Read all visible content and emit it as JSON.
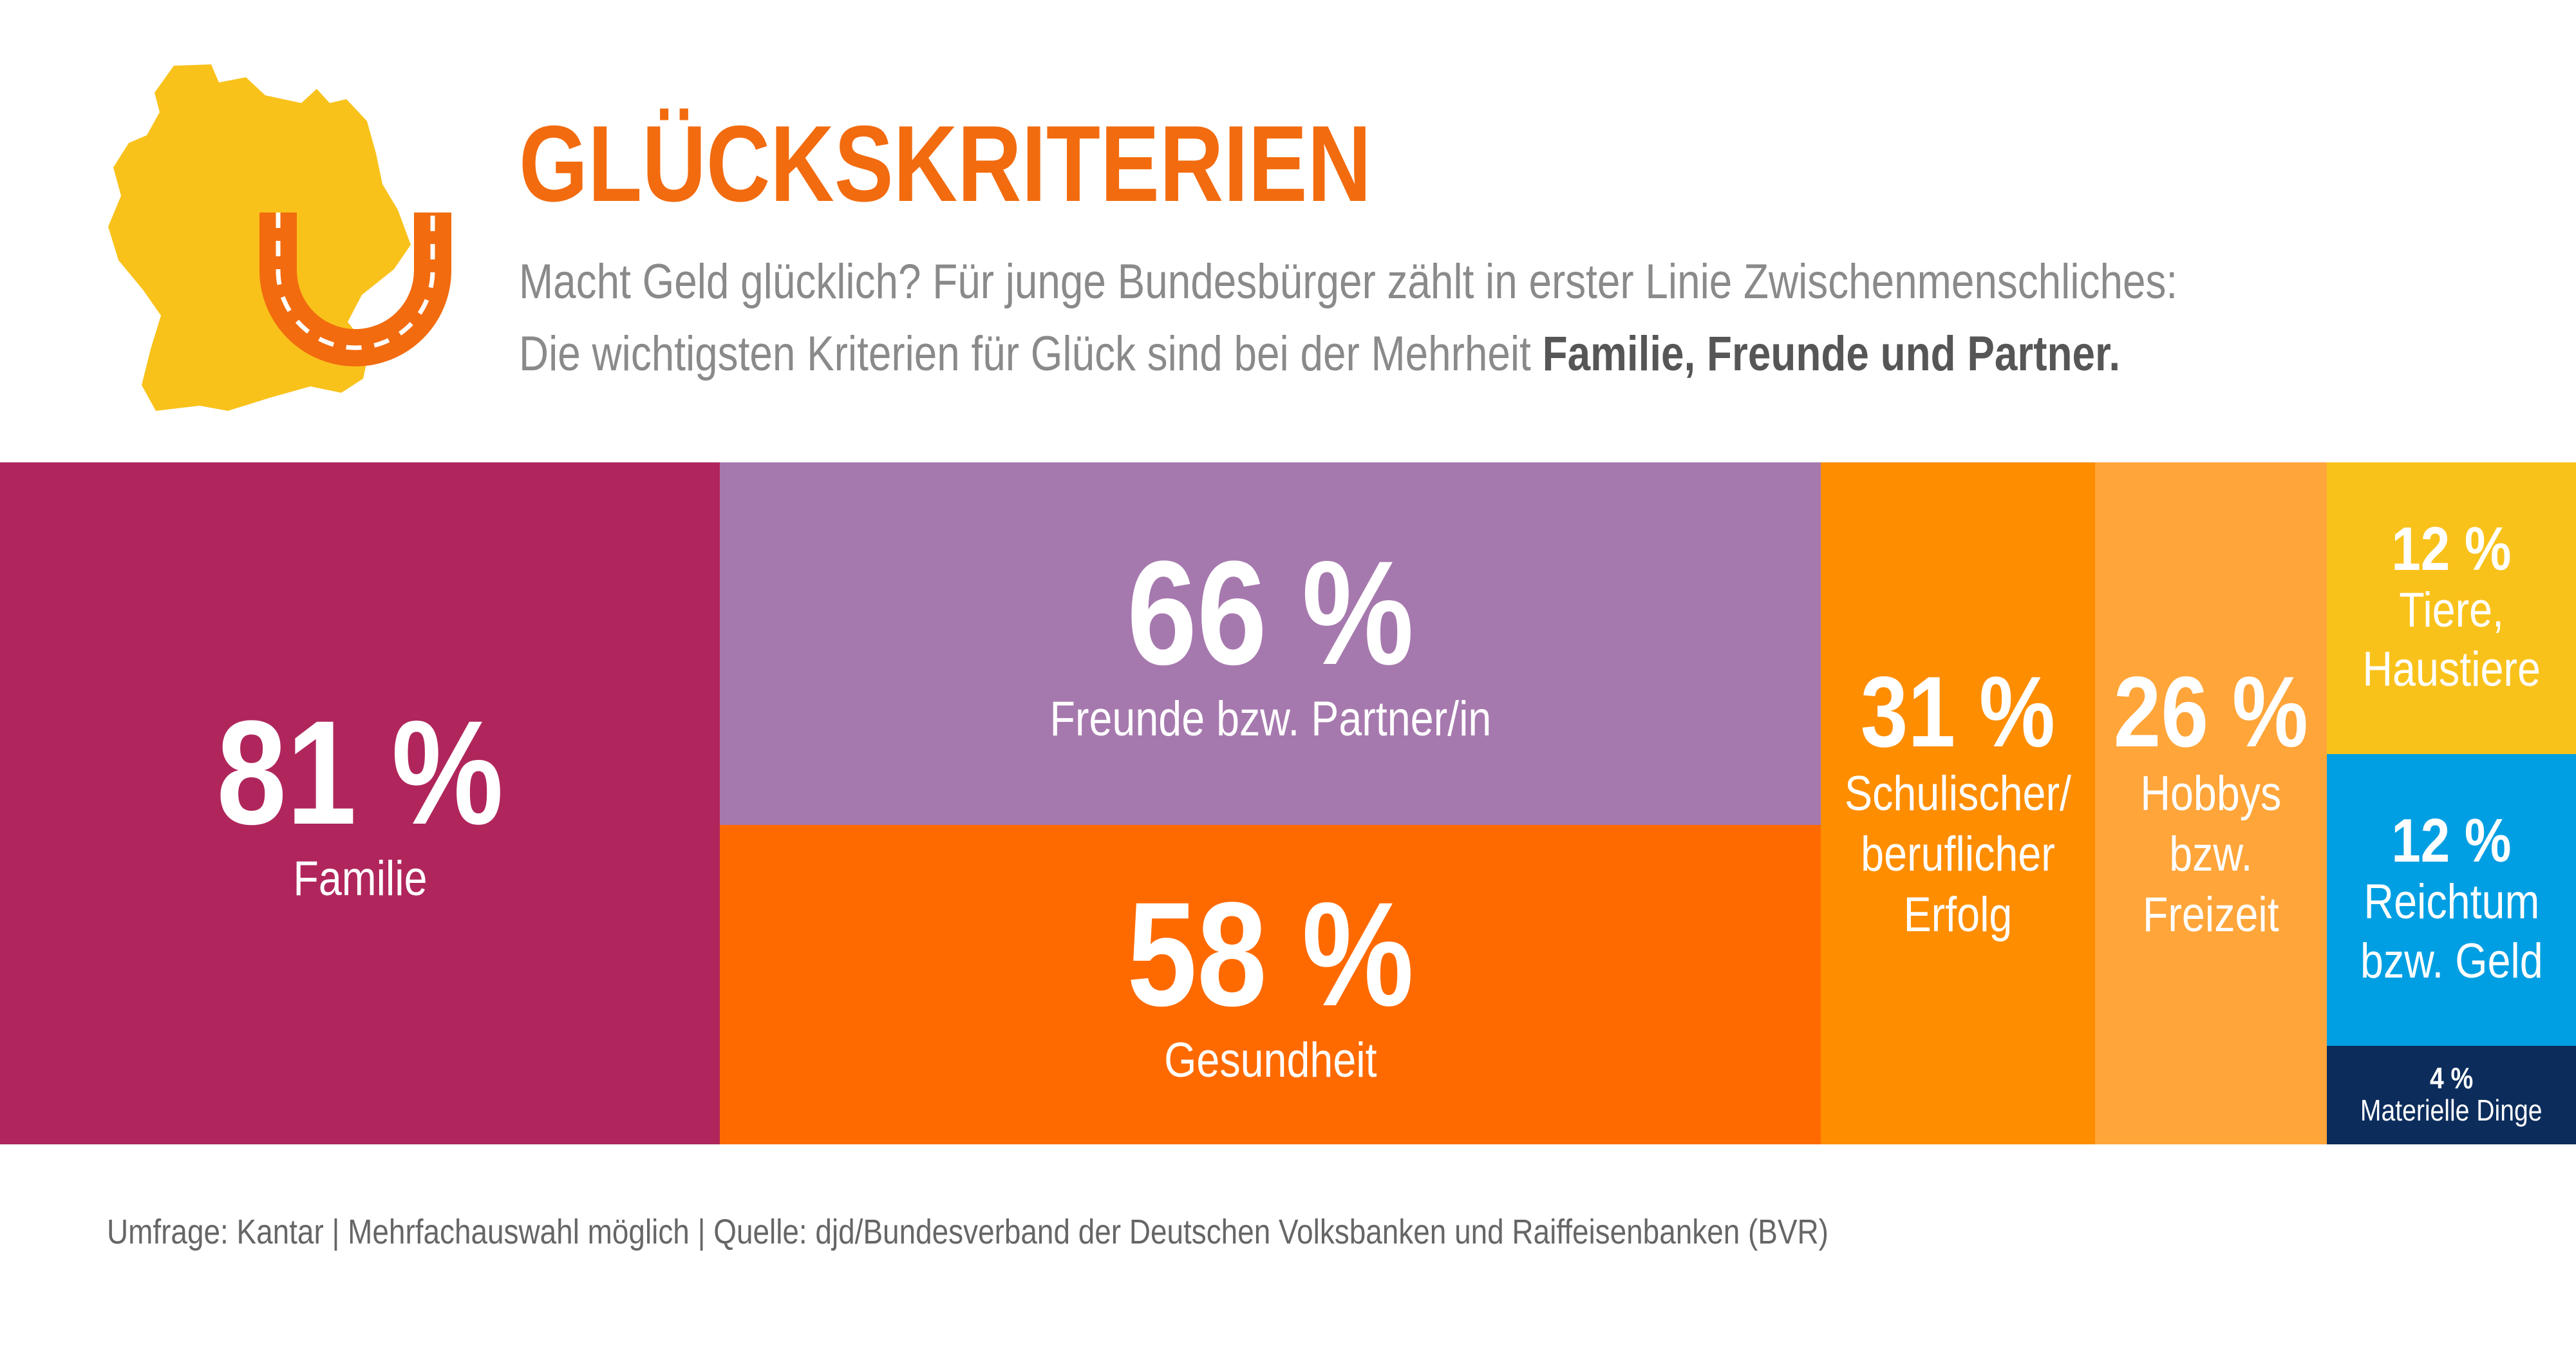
{
  "header": {
    "title": "GLÜCKSKRITERIEN",
    "subtitle_line1": "Macht Geld glücklich? Für junge Bundesbürger zählt in erster Linie Zwischenmenschliches:",
    "subtitle_line2_plain": "Die wichtigsten Kriterien für Glück sind bei der Mehrheit ",
    "subtitle_line2_bold": "Familie, Freunde und Partner."
  },
  "icons": [
    "germany-map-icon",
    "horseshoe-icon"
  ],
  "colors": {
    "title": "#f26b0f",
    "familie": "#b0265c",
    "freunde": "#a679ae",
    "gesundheit": "#ff6a00",
    "erfolg": "#ff8d00",
    "hobbys": "#ffa53a",
    "tiere": "#f9c21b",
    "reichtum": "#009fe3",
    "materielle": "#0c2d5c",
    "map": "#f9c21b",
    "horseshoe": "#f26b0f"
  },
  "chart_data": {
    "type": "treemap",
    "unit": "%",
    "items": [
      {
        "key": "familie",
        "value": 81,
        "pct_text": "81 %",
        "label_lines": [
          "Familie"
        ]
      },
      {
        "key": "freunde",
        "value": 66,
        "pct_text": "66 %",
        "label_lines": [
          "Freunde bzw. Partner/in"
        ]
      },
      {
        "key": "gesundheit",
        "value": 58,
        "pct_text": "58 %",
        "label_lines": [
          "Gesundheit"
        ]
      },
      {
        "key": "erfolg",
        "value": 31,
        "pct_text": "31 %",
        "label_lines": [
          "Schulischer/",
          "beruflicher",
          "Erfolg"
        ]
      },
      {
        "key": "hobbys",
        "value": 26,
        "pct_text": "26 %",
        "label_lines": [
          "Hobbys",
          "bzw.",
          "Freizeit"
        ]
      },
      {
        "key": "tiere",
        "value": 12,
        "pct_text": "12 %",
        "label_lines": [
          "Tiere,",
          "Haustiere"
        ]
      },
      {
        "key": "reichtum",
        "value": 12,
        "pct_text": "12 %",
        "label_lines": [
          "Reichtum",
          "bzw. Geld"
        ]
      },
      {
        "key": "materielle",
        "value": 4,
        "pct_text": "4 %",
        "label_lines": [
          "Materielle Dinge"
        ]
      }
    ]
  },
  "footer": {
    "source": "Umfrage: Kantar | Mehrfachauswahl möglich | Quelle: djd/Bundesverband der Deutschen Volksbanken und Raiffeisenbanken (BVR)"
  }
}
